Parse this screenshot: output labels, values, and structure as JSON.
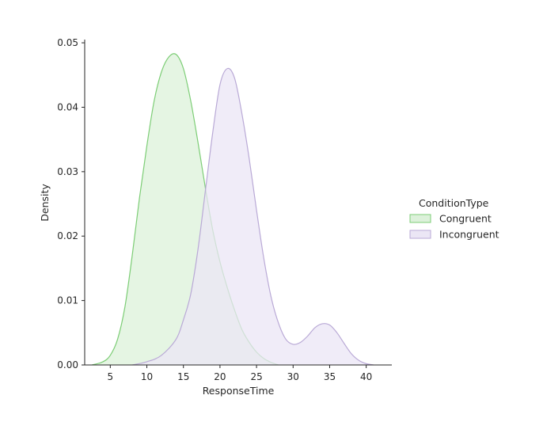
{
  "chart_data": {
    "type": "area",
    "xlabel": "ResponseTime",
    "ylabel": "Density",
    "xlim": [
      1.5,
      43.5
    ],
    "ylim": [
      0,
      0.0505
    ],
    "x_ticks": [
      5,
      10,
      15,
      20,
      25,
      30,
      35,
      40
    ],
    "y_ticks": [
      0.0,
      0.01,
      0.02,
      0.03,
      0.04,
      0.05
    ],
    "y_tick_labels": [
      "0.00",
      "0.01",
      "0.02",
      "0.03",
      "0.04",
      "0.05"
    ],
    "legend": {
      "title": "ConditionType",
      "placement": "right"
    },
    "grid": false,
    "series": [
      {
        "name": "Congruent",
        "color": "#7ccd75",
        "fill": "#dcf1da",
        "x": [
          2.5,
          4,
          5,
          6,
          7,
          8,
          9,
          10,
          11,
          12,
          13,
          14,
          15,
          16,
          17,
          18,
          19,
          20,
          21,
          22,
          23,
          24,
          25,
          26,
          27,
          28
        ],
        "y": [
          0.0,
          0.0005,
          0.0015,
          0.004,
          0.009,
          0.017,
          0.026,
          0.034,
          0.041,
          0.0455,
          0.0478,
          0.0482,
          0.046,
          0.041,
          0.0345,
          0.0275,
          0.021,
          0.016,
          0.012,
          0.0085,
          0.0055,
          0.0035,
          0.002,
          0.001,
          0.0004,
          0.0
        ]
      },
      {
        "name": "Incongruent",
        "color": "#b9a9d6",
        "fill": "#ebe6f5",
        "x": [
          8,
          10,
          12,
          14,
          15,
          16,
          17,
          18,
          19,
          20,
          21,
          22,
          23,
          24,
          25,
          26,
          27,
          28,
          29,
          30,
          31,
          32,
          33,
          34,
          35,
          36,
          37,
          38,
          39,
          40,
          41
        ],
        "y": [
          0.0,
          0.0005,
          0.0015,
          0.004,
          0.007,
          0.011,
          0.018,
          0.027,
          0.036,
          0.0435,
          0.046,
          0.0445,
          0.039,
          0.032,
          0.024,
          0.0165,
          0.0105,
          0.0065,
          0.004,
          0.0032,
          0.0035,
          0.0045,
          0.0058,
          0.0064,
          0.0062,
          0.005,
          0.0033,
          0.0017,
          0.0007,
          0.0002,
          0.0
        ]
      }
    ]
  }
}
